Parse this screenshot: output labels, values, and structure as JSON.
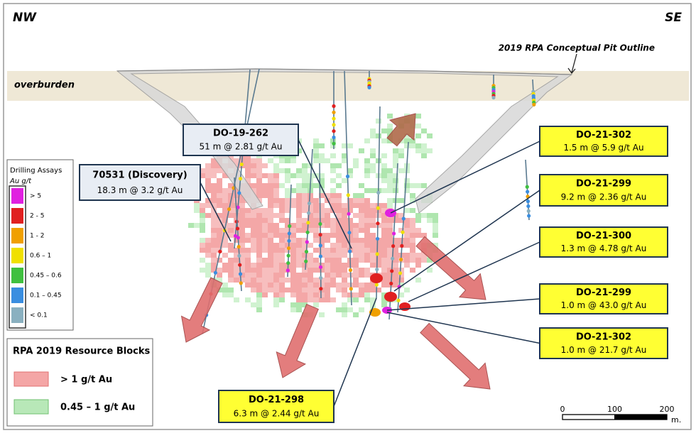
{
  "header": {
    "left": "NW",
    "right": "SE"
  },
  "pit_label": "2019 RPA Conceptual Pit Outline",
  "overburden": "overburden",
  "callouts": [
    {
      "hole": "DO-19-262",
      "intercept": "51 m @ 2.81 g/t Au"
    },
    {
      "hole": "70531 (Discovery)",
      "intercept": "18.3 m @ 3.2 g/t Au"
    },
    {
      "hole": "DO-21-302",
      "intercept": "1.5 m @ 5.9 g/t Au"
    },
    {
      "hole": "DO-21-299",
      "intercept": "9.2 m @ 2.36 g/t Au"
    },
    {
      "hole": "DO-21-300",
      "intercept": "1.3 m @ 4.78  g/t Au"
    },
    {
      "hole": "DO-21-299",
      "intercept": "1.0 m @ 43.0  g/t Au"
    },
    {
      "hole": "DO-21-302",
      "intercept": "1.0 m @ 21.7 g/t Au"
    },
    {
      "hole": "DO-21-298",
      "intercept": "6.3 m @ 2.44 g/t Au"
    }
  ],
  "assay_legend": {
    "title": "Drilling Assays",
    "unit": "Au g/t",
    "items": [
      "> 5",
      "2 - 5",
      "1 - 2",
      "0.6 – 1",
      "0.45 – 0.6",
      "0.1 – 0.45",
      "< 0.1"
    ]
  },
  "resource_legend": {
    "title": "RPA 2019 Resource Blocks",
    "items": [
      "> 1 g/t Au",
      "0.45 – 1 g/t Au"
    ]
  },
  "scale": {
    "ticks": [
      0,
      100,
      200
    ],
    "unit": "m."
  }
}
